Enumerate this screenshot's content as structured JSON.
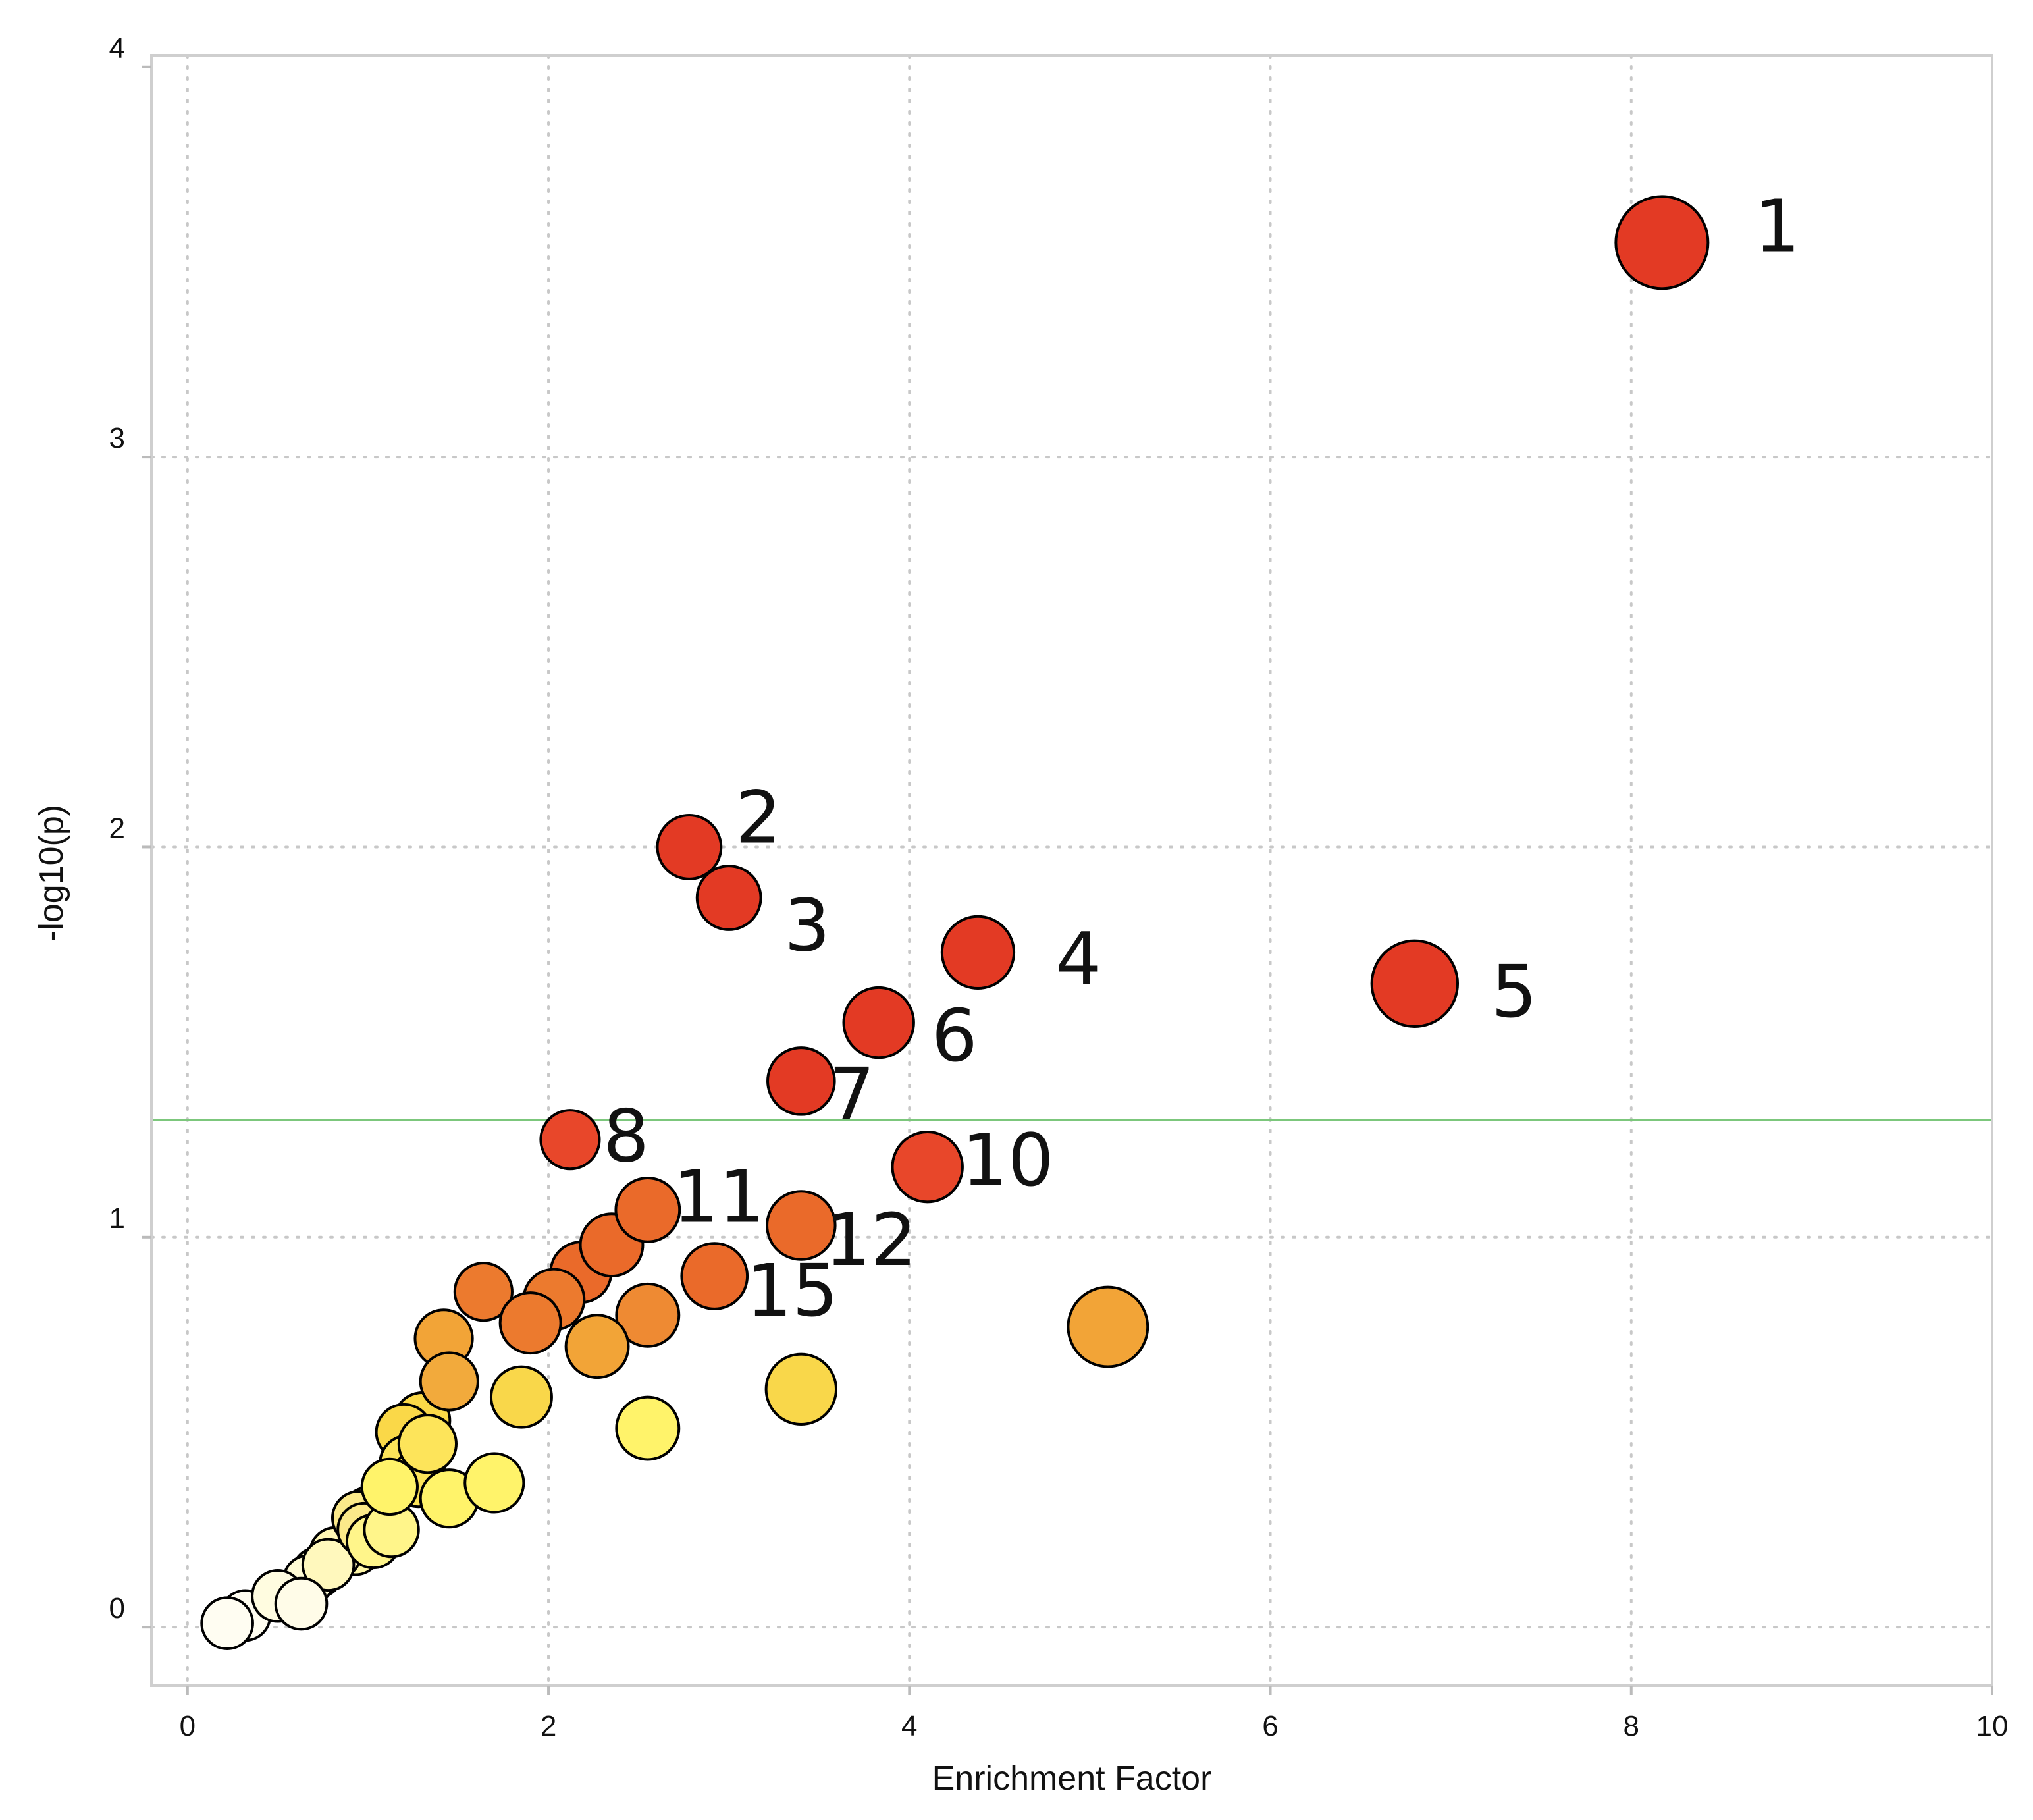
{
  "chart_data": {
    "type": "scatter",
    "title": "",
    "xlabel": "Enrichment Factor",
    "ylabel": "-log10(p)",
    "xlim": [
      -0.2,
      10
    ],
    "ylim": [
      -0.15,
      4.03
    ],
    "xticks": [
      0,
      2,
      4,
      6,
      8,
      10
    ],
    "yticks": [
      0,
      1,
      2,
      3,
      4
    ],
    "grid": true,
    "threshold_y": 1.3,
    "threshold_color": "#7cc77c",
    "color_scale": [
      "#fffce8",
      "#fff36a",
      "#f9d74a",
      "#f2a437",
      "#ea6a2a",
      "#e33a24"
    ],
    "points": [
      {
        "x": 8.17,
        "y": 3.55,
        "size": 1.0,
        "color": "#e33a24",
        "label": "1"
      },
      {
        "x": 2.78,
        "y": 2.0,
        "size": 0.55,
        "color": "#e33a24",
        "label": "2"
      },
      {
        "x": 3.0,
        "y": 1.87,
        "size": 0.55,
        "color": "#e33a24",
        "label": "3"
      },
      {
        "x": 4.38,
        "y": 1.73,
        "size": 0.68,
        "color": "#e33a24",
        "label": "4"
      },
      {
        "x": 6.8,
        "y": 1.65,
        "size": 0.9,
        "color": "#e33a24",
        "label": "5"
      },
      {
        "x": 3.83,
        "y": 1.55,
        "size": 0.65,
        "color": "#e33a24",
        "label": "6"
      },
      {
        "x": 3.4,
        "y": 1.4,
        "size": 0.6,
        "color": "#e33a24",
        "label": "7"
      },
      {
        "x": 2.12,
        "y": 1.25,
        "size": 0.47,
        "color": "#e8472a",
        "label": "8"
      },
      {
        "x": 4.1,
        "y": 1.18,
        "size": 0.65,
        "color": "#e8472a",
        "label": "10"
      },
      {
        "x": 2.55,
        "y": 1.07,
        "size": 0.55,
        "color": "#ea6a2a",
        "label": "11"
      },
      {
        "x": 3.4,
        "y": 1.03,
        "size": 0.62,
        "color": "#ea6a2a",
        "label": "12"
      },
      {
        "x": 2.92,
        "y": 0.9,
        "size": 0.58,
        "color": "#ea6a2a",
        "label": "15"
      },
      {
        "x": 2.35,
        "y": 0.98,
        "size": 0.53,
        "color": "#ea6a2a",
        "label": ""
      },
      {
        "x": 2.18,
        "y": 0.91,
        "size": 0.5,
        "color": "#ea6a2a",
        "label": ""
      },
      {
        "x": 2.03,
        "y": 0.84,
        "size": 0.5,
        "color": "#ec7a2e",
        "label": ""
      },
      {
        "x": 1.9,
        "y": 0.78,
        "size": 0.5,
        "color": "#ec7a2e",
        "label": ""
      },
      {
        "x": 1.64,
        "y": 0.86,
        "size": 0.45,
        "color": "#ec7a2e",
        "label": ""
      },
      {
        "x": 2.55,
        "y": 0.8,
        "size": 0.53,
        "color": "#ee8a33",
        "label": ""
      },
      {
        "x": 2.27,
        "y": 0.72,
        "size": 0.53,
        "color": "#f2a437",
        "label": ""
      },
      {
        "x": 1.42,
        "y": 0.74,
        "size": 0.45,
        "color": "#f2a437",
        "label": ""
      },
      {
        "x": 5.1,
        "y": 0.77,
        "size": 0.8,
        "color": "#f2a437",
        "label": ""
      },
      {
        "x": 1.45,
        "y": 0.63,
        "size": 0.45,
        "color": "#f2aa3c",
        "label": ""
      },
      {
        "x": 3.4,
        "y": 0.61,
        "size": 0.65,
        "color": "#f9d74a",
        "label": ""
      },
      {
        "x": 1.85,
        "y": 0.59,
        "size": 0.5,
        "color": "#f9d74a",
        "label": ""
      },
      {
        "x": 2.55,
        "y": 0.51,
        "size": 0.53,
        "color": "#fff36a",
        "label": ""
      },
      {
        "x": 1.3,
        "y": 0.53,
        "size": 0.42,
        "color": "#fad848",
        "label": ""
      },
      {
        "x": 1.2,
        "y": 0.5,
        "size": 0.42,
        "color": "#fad848",
        "label": ""
      },
      {
        "x": 1.33,
        "y": 0.47,
        "size": 0.45,
        "color": "#fde45a",
        "label": ""
      },
      {
        "x": 1.22,
        "y": 0.42,
        "size": 0.42,
        "color": "#fde45a",
        "label": ""
      },
      {
        "x": 1.28,
        "y": 0.38,
        "size": 0.42,
        "color": "#fde45a",
        "label": ""
      },
      {
        "x": 1.12,
        "y": 0.36,
        "size": 0.42,
        "color": "#fff36a",
        "label": ""
      },
      {
        "x": 1.7,
        "y": 0.37,
        "size": 0.47,
        "color": "#fff36a",
        "label": ""
      },
      {
        "x": 1.45,
        "y": 0.33,
        "size": 0.45,
        "color": "#fff36a",
        "label": ""
      },
      {
        "x": 1.0,
        "y": 0.29,
        "size": 0.38,
        "color": "#fbe98a",
        "label": ""
      },
      {
        "x": 0.95,
        "y": 0.28,
        "size": 0.38,
        "color": "#fbe98a",
        "label": ""
      },
      {
        "x": 0.98,
        "y": 0.25,
        "size": 0.38,
        "color": "#fbe98a",
        "label": ""
      },
      {
        "x": 1.13,
        "y": 0.25,
        "size": 0.4,
        "color": "#fff58a",
        "label": ""
      },
      {
        "x": 1.03,
        "y": 0.22,
        "size": 0.38,
        "color": "#fff58a",
        "label": ""
      },
      {
        "x": 0.93,
        "y": 0.2,
        "size": 0.35,
        "color": "#fff7a8",
        "label": ""
      },
      {
        "x": 0.82,
        "y": 0.19,
        "size": 0.35,
        "color": "#fff7b5",
        "label": ""
      },
      {
        "x": 0.78,
        "y": 0.16,
        "size": 0.35,
        "color": "#fff8bd",
        "label": ""
      },
      {
        "x": 0.72,
        "y": 0.14,
        "size": 0.33,
        "color": "#fffac8",
        "label": ""
      },
      {
        "x": 0.67,
        "y": 0.12,
        "size": 0.33,
        "color": "#fffbd5",
        "label": ""
      },
      {
        "x": 0.5,
        "y": 0.08,
        "size": 0.35,
        "color": "#fffce0",
        "label": ""
      },
      {
        "x": 0.63,
        "y": 0.06,
        "size": 0.35,
        "color": "#fffce8",
        "label": ""
      },
      {
        "x": 0.32,
        "y": 0.03,
        "size": 0.33,
        "color": "#fffdf0",
        "label": ""
      },
      {
        "x": 0.22,
        "y": 0.01,
        "size": 0.35,
        "color": "#fffdf2",
        "label": ""
      }
    ]
  }
}
